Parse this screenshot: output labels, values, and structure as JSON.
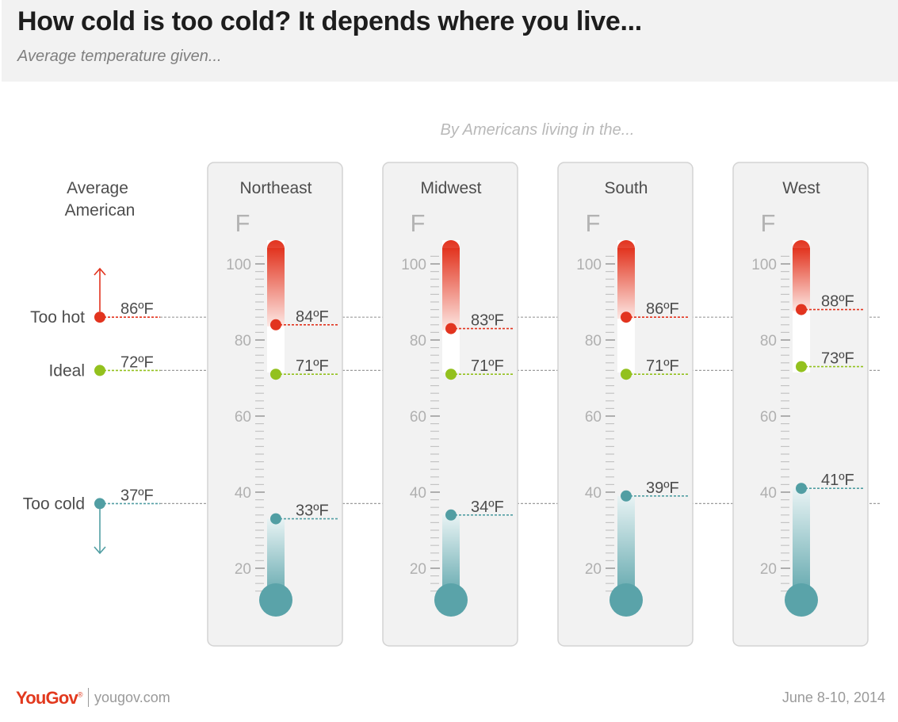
{
  "title": "How cold is too cold? It depends where you live...",
  "subtitle": "Average temperature given...",
  "footer": {
    "logo": "YouGov",
    "logo_mark": "®",
    "url": "yougov.com",
    "date": "June 8-10, 2014"
  },
  "colors": {
    "hot": "#e2341f",
    "ideal": "#93c11e",
    "cold": "#519ea3",
    "panel": "#f2f2f2",
    "tube_top": "#e2341f",
    "tube_bottom": "#5aa3a9"
  },
  "chart_data": {
    "type": "thermometer",
    "unit": "F",
    "unit_suffix": "ºF",
    "scale": {
      "ticks": [
        20,
        40,
        60,
        80,
        100
      ]
    },
    "group_label": "By Americans living in the...",
    "reference": {
      "name": "Average American",
      "values": {
        "too_hot": 86,
        "ideal": 72,
        "too_cold": 37
      }
    },
    "measures": [
      {
        "key": "too_hot",
        "label": "Too hot",
        "color": "#e2341f"
      },
      {
        "key": "ideal",
        "label": "Ideal",
        "color": "#93c11e"
      },
      {
        "key": "too_cold",
        "label": "Too cold",
        "color": "#519ea3"
      }
    ],
    "regions": [
      {
        "name": "Northeast",
        "values": {
          "too_hot": 84,
          "ideal": 71,
          "too_cold": 33
        }
      },
      {
        "name": "Midwest",
        "values": {
          "too_hot": 83,
          "ideal": 71,
          "too_cold": 34
        }
      },
      {
        "name": "South",
        "values": {
          "too_hot": 86,
          "ideal": 71,
          "too_cold": 39
        }
      },
      {
        "name": "West",
        "values": {
          "too_hot": 88,
          "ideal": 73,
          "too_cold": 41
        }
      }
    ]
  }
}
